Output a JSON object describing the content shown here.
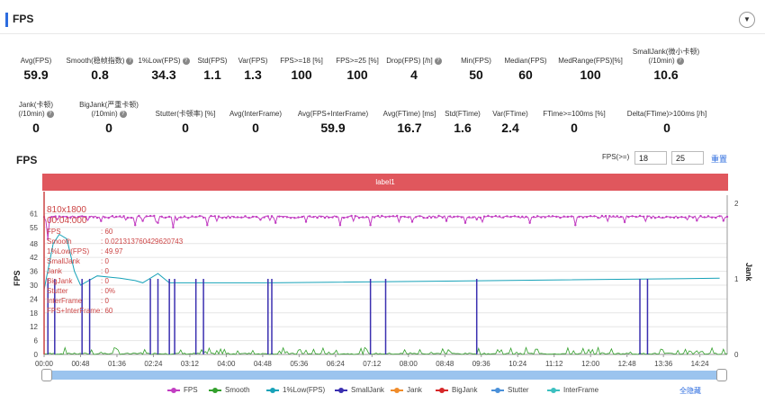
{
  "header": {
    "title": "FPS",
    "collapse_icon": "▼"
  },
  "metrics_row1": [
    {
      "label": "Avg(FPS)",
      "value": "59.9",
      "help": false
    },
    {
      "label": "Smooth(稳帧指数)",
      "value": "0.8",
      "help": true
    },
    {
      "label": "1%Low(FPS)",
      "value": "34.3",
      "help": true
    },
    {
      "label": "Std(FPS)",
      "value": "1.1",
      "help": false
    },
    {
      "label": "Var(FPS)",
      "value": "1.3",
      "help": false
    },
    {
      "label": "FPS>=18 [%]",
      "value": "100",
      "help": false
    },
    {
      "label": "FPS>=25 [%]",
      "value": "100",
      "help": false
    },
    {
      "label": "Drop(FPS) [/h]",
      "value": "4",
      "help": true
    },
    {
      "label": "Min(FPS)",
      "value": "50",
      "help": false
    },
    {
      "label": "Median(FPS)",
      "value": "60",
      "help": false
    },
    {
      "label": "MedRange(FPS)[%]",
      "value": "100",
      "help": false
    },
    {
      "label": "SmallJank(微小卡顿)",
      "label2": "(/10min)",
      "value": "10.6",
      "help": true
    }
  ],
  "metrics_row2": [
    {
      "label": "Jank(卡顿)",
      "label2": "(/10min)",
      "value": "0",
      "help": true
    },
    {
      "label": "BigJank(严重卡顿)",
      "label2": "(/10min)",
      "value": "0",
      "help": true
    },
    {
      "label": "Stutter(卡顿率) [%]",
      "value": "0",
      "help": false
    },
    {
      "label": "Avg(InterFrame)",
      "value": "0",
      "help": false
    },
    {
      "label": "Avg(FPS+InterFrame)",
      "value": "59.9",
      "help": false
    },
    {
      "label": "Avg(FTime) [ms]",
      "value": "16.7",
      "help": false
    },
    {
      "label": "Std(FTime)",
      "value": "1.6",
      "help": false
    },
    {
      "label": "Var(FTime)",
      "value": "2.4",
      "help": false
    },
    {
      "label": "FTime>=100ms [%]",
      "value": "0",
      "help": false
    },
    {
      "label": "Delta(FTime)>100ms [/h]",
      "value": "0",
      "help": false
    }
  ],
  "chart_header": {
    "title": "FPS",
    "filter_label": "FPS(>=)",
    "filter_value_1": "18",
    "filter_value_2": "25",
    "reset_label": "重置"
  },
  "label_bar": {
    "text": "label1",
    "color": "#e0575d"
  },
  "tooltip": {
    "resolution": "810x1800",
    "time": "00:04:000",
    "rows": [
      {
        "k": "FPS",
        "v": ": 60"
      },
      {
        "k": "Smooth",
        "v": ": 0.021313760429620743"
      },
      {
        "k": "1%Low(FPS)",
        "v": ": 49.97"
      },
      {
        "k": "SmallJank",
        "v": ": 0"
      },
      {
        "k": "Jank",
        "v": ": 0"
      },
      {
        "k": "BigJank",
        "v": ": 0"
      },
      {
        "k": "Stutter",
        "v": ": 0%"
      },
      {
        "k": "InterFrame",
        "v": ": 0"
      },
      {
        "k": "FPS+InterFrame",
        "v": ": 60"
      }
    ]
  },
  "chart_data": {
    "type": "line",
    "ylabel": "FPS",
    "y2label": "Jank",
    "y_ticks": [
      0,
      6,
      12,
      18,
      24,
      30,
      36,
      42,
      48,
      55,
      61
    ],
    "y2_ticks": [
      0,
      1,
      2
    ],
    "ylim": [
      0,
      67
    ],
    "y2lim": [
      0,
      2.0
    ],
    "x_ticks": [
      "00:00",
      "00:48",
      "01:36",
      "02:24",
      "03:12",
      "04:00",
      "04:48",
      "05:36",
      "06:24",
      "07:12",
      "08:00",
      "08:48",
      "09:36",
      "10:24",
      "11:12",
      "12:00",
      "12:48",
      "13:36",
      "14:24"
    ],
    "x_range_seconds": [
      0,
      900
    ],
    "series": [
      {
        "name": "FPS",
        "color": "#c23ec2",
        "base_value": 60,
        "dips": [
          [
            5,
            50
          ],
          [
            120,
            56
          ],
          [
            150,
            57
          ],
          [
            170,
            55
          ],
          [
            215,
            56
          ],
          [
            305,
            57
          ],
          [
            390,
            56
          ],
          [
            430,
            56
          ],
          [
            555,
            57
          ],
          [
            640,
            57
          ],
          [
            700,
            56
          ]
        ]
      },
      {
        "name": "Smooth",
        "color": "#33a02c",
        "typical_range": [
          0,
          3
        ]
      },
      {
        "name": "1%Low(FPS)",
        "color": "#17a2b8",
        "points": [
          [
            0,
            28
          ],
          [
            12,
            48
          ],
          [
            20,
            52
          ],
          [
            30,
            50
          ],
          [
            40,
            36
          ],
          [
            48,
            30
          ],
          [
            70,
            34
          ],
          [
            100,
            33
          ],
          [
            120,
            32
          ],
          [
            130,
            31
          ],
          [
            150,
            35
          ],
          [
            165,
            31
          ],
          [
            300,
            31
          ],
          [
            600,
            32
          ],
          [
            890,
            33
          ]
        ]
      },
      {
        "name": "SmallJank",
        "color": "#3a2fb0",
        "spike_times": [
          5,
          14,
          50,
          60,
          140,
          150,
          165,
          172,
          200,
          210,
          295,
          300,
          430,
          450,
          570,
          785,
          795
        ]
      },
      {
        "name": "Jank",
        "color": "#f08c2a",
        "values": []
      },
      {
        "name": "BigJank",
        "color": "#d62728",
        "values": []
      },
      {
        "name": "Stutter",
        "color": "#4a90d9",
        "values": []
      },
      {
        "name": "InterFrame",
        "color": "#3cc0c0",
        "values": []
      }
    ]
  },
  "legend": {
    "items": [
      {
        "name": "FPS",
        "color": "#c23ec2"
      },
      {
        "name": "Smooth",
        "color": "#33a02c"
      },
      {
        "name": "1%Low(FPS)",
        "color": "#17a2b8"
      },
      {
        "name": "SmallJank",
        "color": "#3a2fb0"
      },
      {
        "name": "Jank",
        "color": "#f08c2a"
      },
      {
        "name": "BigJank",
        "color": "#d62728"
      },
      {
        "name": "Stutter",
        "color": "#4a90d9"
      },
      {
        "name": "InterFrame",
        "color": "#3cc0c0"
      }
    ],
    "hide_all": "全隐藏"
  }
}
